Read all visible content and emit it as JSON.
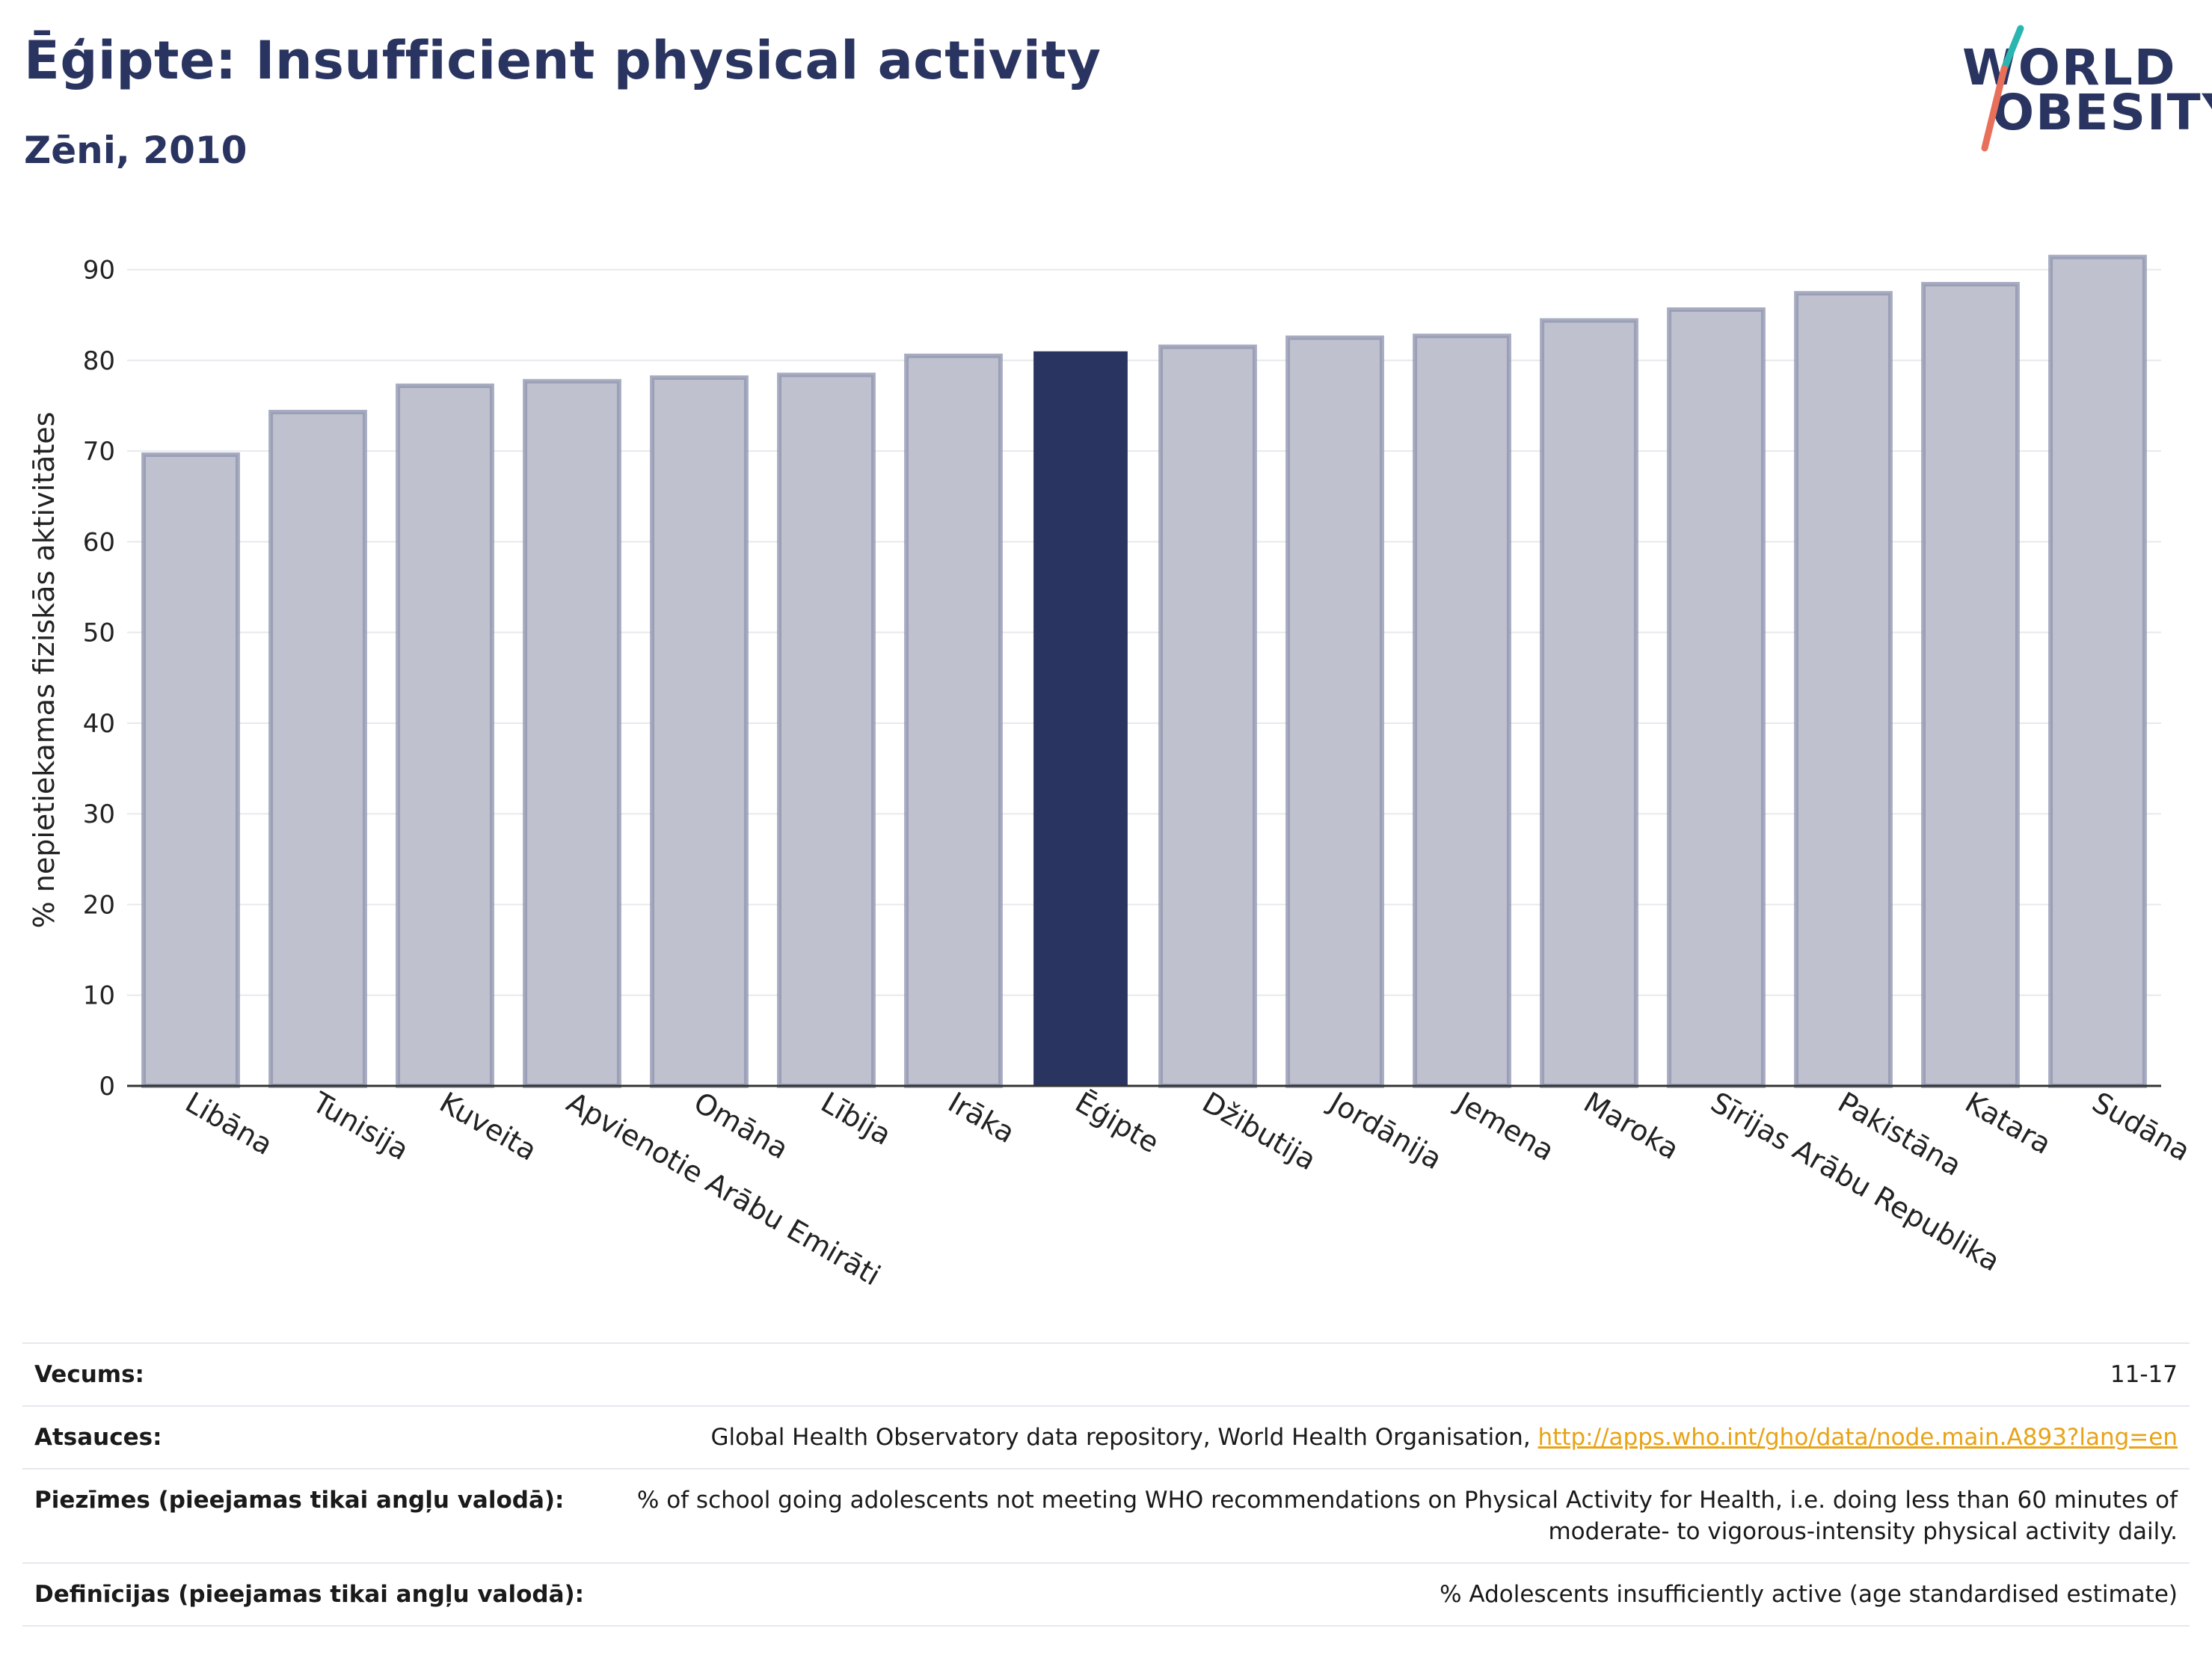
{
  "header": {
    "title": "Ēģipte: Insufficient physical activity",
    "subtitle": "Zēni, 2010"
  },
  "logo": {
    "line1": "WORLD",
    "line2": "OBESITY",
    "colors": {
      "text": "#2a3460",
      "slash_top": "#2bb5b0",
      "slash_bottom": "#e8705a"
    }
  },
  "chart_data": {
    "type": "bar",
    "ylabel": "% nepietiekamas fiziskās aktivitātes",
    "ylim": [
      0,
      95
    ],
    "yticks": [
      0,
      10,
      20,
      30,
      40,
      50,
      60,
      70,
      80,
      90
    ],
    "grid": true,
    "categories": [
      "Libāna",
      "Tunisija",
      "Kuveita",
      "Apvienotie Arābu Emirāti",
      "Omāna",
      "Lībija",
      "Irāka",
      "Ēģipte",
      "Džibutija",
      "Jordānija",
      "Jemena",
      "Maroka",
      "Sīrijas Arābu Republika",
      "Pakistāna",
      "Katara",
      "Sudāna"
    ],
    "values": [
      69.6,
      74.3,
      77.2,
      77.7,
      78.1,
      78.4,
      80.5,
      81.0,
      81.5,
      82.5,
      82.7,
      84.4,
      85.6,
      87.4,
      88.4,
      91.4
    ],
    "highlight": "Ēģipte",
    "colors": {
      "bar": "#bfc2ce",
      "bar_edge": "#9297b2",
      "highlight": "#2a3460",
      "grid": "#e8e9ee",
      "axis": "#333333"
    }
  },
  "footer": {
    "rows": [
      {
        "label": "Vecums:",
        "value": "11-17"
      },
      {
        "label": "Atsauces:",
        "value": "Global Health Observatory data repository, World Health Organisation, ",
        "link": "http://apps.who.int/gho/data/node.main.A893?lang=en"
      },
      {
        "label": "Piezīmes (pieejamas tikai angļu valodā):",
        "value": "% of school going adolescents not meeting WHO recommendations on Physical Activity for Health, i.e. doing less than 60 minutes of moderate- to vigorous-intensity physical activity daily."
      },
      {
        "label": "Definīcijas (pieejamas tikai angļu valodā):",
        "value": "% Adolescents insufficiently active (age standardised estimate)"
      }
    ]
  }
}
